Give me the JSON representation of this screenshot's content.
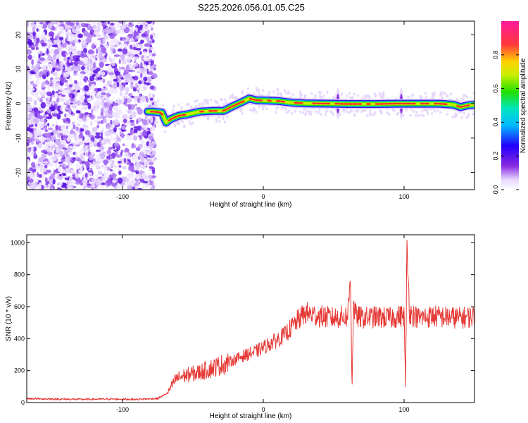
{
  "title": "S225.2026.056.01.05.C25",
  "chart_data": [
    {
      "type": "heatmap",
      "title": "S225.2026.056.01.05.C25",
      "xlabel": "Height of straight line (km)",
      "ylabel": "Frequency (Hz)",
      "xlim": [
        -168,
        150
      ],
      "ylim": [
        -25,
        24
      ],
      "xticks": [
        -100,
        0,
        100
      ],
      "yticks": [
        -20,
        -10,
        0,
        10,
        20
      ],
      "colorbar": {
        "label": "Normalized spectral amplitude",
        "range": [
          0,
          1
        ],
        "ticks": [
          "0.0",
          "0.2",
          "0.4",
          "0.6",
          "0.8"
        ],
        "tick_values": [
          0.0,
          0.2,
          0.4,
          0.6,
          0.8
        ]
      },
      "noise_region_km": [
        -168,
        -80
      ],
      "signal_trace": {
        "x_km": [
          -82,
          -78,
          -72,
          -69,
          -66,
          -60,
          -55,
          -45,
          -35,
          -28,
          -22,
          -15,
          -10,
          -5,
          10,
          20,
          30,
          50,
          60,
          80,
          95,
          100,
          110,
          125,
          135,
          140,
          145,
          150
        ],
        "freq_hz": [
          -2.3,
          -2.3,
          -2.6,
          -5.5,
          -4.5,
          -3.5,
          -3.2,
          -2.3,
          -2.1,
          -2.1,
          -0.8,
          0.5,
          1.5,
          1.0,
          0.8,
          0.3,
          0.1,
          0.0,
          -0.1,
          -0.1,
          0.0,
          0.0,
          0.0,
          0.0,
          -0.3,
          -1.0,
          -0.5,
          -0.3
        ]
      },
      "bursts_km": [
        53,
        98
      ]
    },
    {
      "type": "line",
      "xlabel": "Height of straight line (km)",
      "ylabel": "SNR (10 * v/v)",
      "xlim": [
        -168,
        150
      ],
      "ylim": [
        0,
        1050
      ],
      "xticks": [
        -100,
        0,
        100
      ],
      "yticks": [
        0,
        200,
        400,
        600,
        800,
        1000
      ],
      "color": "#e53935",
      "series": [
        {
          "name": "SNR",
          "x_km": [
            -168,
            -150,
            -130,
            -110,
            -90,
            -75,
            -68,
            -62,
            -55,
            -45,
            -35,
            -25,
            -15,
            -5,
            5,
            15,
            20,
            25,
            30,
            40,
            50,
            60,
            62,
            63,
            64,
            66,
            70,
            80,
            90,
            100,
            101,
            102,
            104,
            110,
            120,
            130,
            140,
            150
          ],
          "snr": [
            25,
            22,
            20,
            22,
            20,
            25,
            60,
            150,
            170,
            190,
            220,
            250,
            290,
            320,
            370,
            420,
            470,
            520,
            560,
            540,
            530,
            540,
            800,
            90,
            600,
            540,
            530,
            535,
            530,
            545,
            90,
            950,
            560,
            530,
            540,
            535,
            530,
            540
          ]
        }
      ]
    }
  ]
}
